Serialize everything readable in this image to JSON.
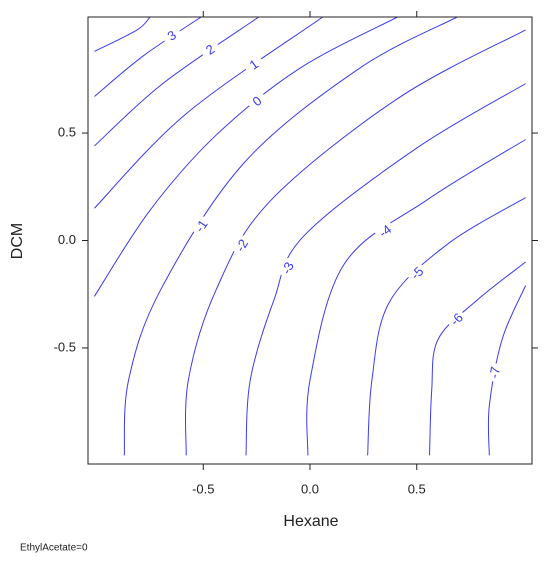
{
  "chart_data": {
    "type": "contour",
    "xlabel": "Hexane",
    "ylabel": "DCM",
    "footnote": "EthylAcetate=0",
    "color": "#3b3bf0",
    "xlim": [
      -1.04,
      1.04
    ],
    "ylim": [
      -1.04,
      1.04
    ],
    "xticks": [
      -0.5,
      {
        "value": 0,
        "label": "0.0"
      },
      0.5
    ],
    "yticks": [
      -0.5,
      {
        "value": 0,
        "label": "0.0"
      },
      0.5
    ],
    "contours": [
      {
        "name": null,
        "x": [
          -1.01,
          -0.81,
          -0.75
        ],
        "y": [
          0.88,
          0.98,
          1.04
        ]
      },
      {
        "name": "3",
        "x": [
          -1.01,
          -0.78,
          -0.51
        ],
        "y": [
          0.67,
          0.86,
          1.04
        ]
      },
      {
        "name": "2",
        "x": [
          -1.01,
          -0.69,
          -0.24
        ],
        "y": [
          0.44,
          0.73,
          1.04
        ]
      },
      {
        "name": "1",
        "x": [
          -1.01,
          -0.58,
          0.06
        ],
        "y": [
          0.15,
          0.59,
          1.04
        ]
      },
      {
        "name": "0",
        "x": [
          -1.01,
          -0.75,
          -0.44,
          -0.05,
          0.41
        ],
        "y": [
          -0.26,
          0.14,
          0.49,
          0.8,
          1.04
        ]
      },
      {
        "name": "-1",
        "x": [
          -0.87,
          -0.85,
          -0.7,
          -0.31,
          0.23,
          0.69
        ],
        "y": [
          -1,
          -0.65,
          -0.23,
          0.36,
          0.8,
          1.04
        ]
      },
      {
        "name": "-2",
        "x": [
          -0.58,
          -0.57,
          -0.44,
          -0.19,
          0.41,
          1.01
        ],
        "y": [
          -1,
          -0.65,
          -0.23,
          0.18,
          0.66,
          0.98
        ]
      },
      {
        "name": "-3",
        "x": [
          -0.3,
          -0.28,
          -0.17,
          -0.03,
          0.5,
          1.01
        ],
        "y": [
          -1,
          -0.65,
          -0.28,
          0.02,
          0.43,
          0.73
        ]
      },
      {
        "name": "-4",
        "x": [
          -0.01,
          0,
          0.16,
          0.55,
          1.01
        ],
        "y": [
          -1,
          -0.65,
          -0.11,
          0.19,
          0.47
        ]
      },
      {
        "name": "-5",
        "x": [
          0.27,
          0.29,
          0.37,
          0.64,
          1.01
        ],
        "y": [
          -1,
          -0.65,
          -0.29,
          -0.02,
          0.2
        ]
      },
      {
        "name": "-6",
        "x": [
          0.56,
          0.57,
          0.6,
          0.78,
          1.01
        ],
        "y": [
          -1,
          -0.7,
          -0.46,
          -0.28,
          -0.1
        ]
      },
      {
        "name": "-7",
        "x": [
          0.84,
          0.84,
          0.9,
          1.01
        ],
        "y": [
          -1,
          -0.77,
          -0.46,
          -0.21
        ]
      }
    ]
  }
}
